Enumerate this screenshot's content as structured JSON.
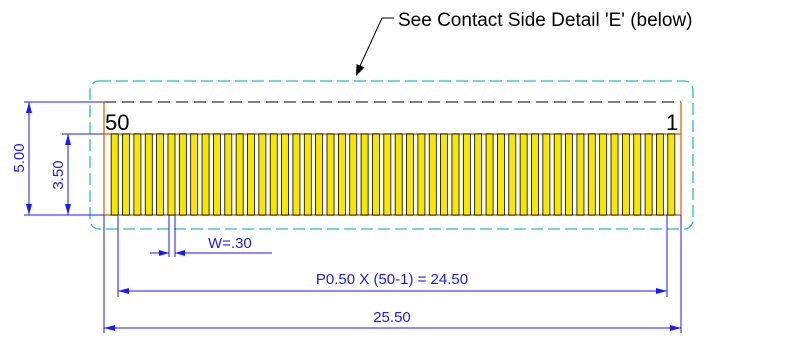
{
  "callout": {
    "text": "See Contact Side Detail 'E' (below)"
  },
  "pins": {
    "first": "50",
    "last": "1",
    "count": 50
  },
  "dimensions": {
    "overall_height": "5.00",
    "contact_height": "3.50",
    "contact_width": "W=.30",
    "pitch": "P0.50 X (50-1) = 24.50",
    "overall_width": "25.50"
  },
  "colors": {
    "contact_fill": "#f7e600",
    "contact_stroke": "#000000",
    "outline": "#e07020",
    "keepout": "#20c0c0",
    "dimension": "#1a1aff"
  }
}
